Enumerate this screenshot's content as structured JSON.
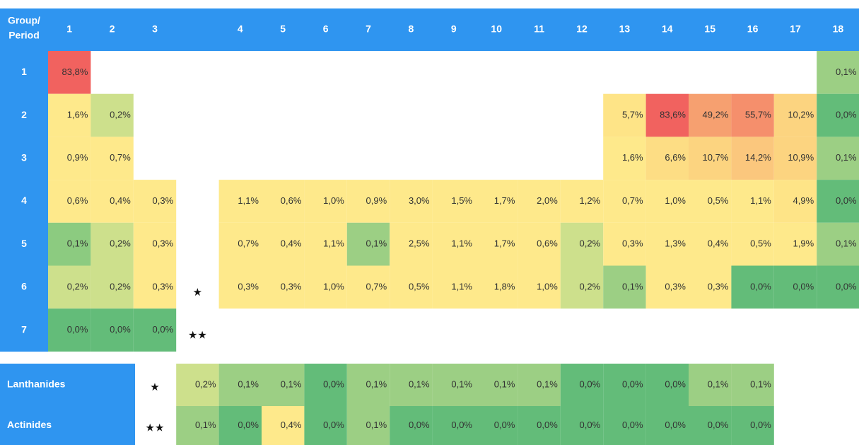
{
  "header": {
    "corner": [
      "Group/",
      "Period"
    ],
    "groups": [
      "1",
      "2",
      "3",
      "4",
      "5",
      "6",
      "7",
      "8",
      "9",
      "10",
      "11",
      "12",
      "13",
      "14",
      "15",
      "16",
      "17",
      "18"
    ]
  },
  "rows": [
    {
      "period": "1",
      "marker": null,
      "cells": [
        {
          "t": "83,8%",
          "c": "#f1625f"
        },
        null,
        null,
        null,
        null,
        null,
        null,
        null,
        null,
        null,
        null,
        null,
        null,
        null,
        null,
        null,
        null,
        {
          "t": "0,1%",
          "c": "#9ccf84"
        }
      ]
    },
    {
      "period": "2",
      "marker": null,
      "cells": [
        {
          "t": "1,6%",
          "c": "#fee98b"
        },
        {
          "t": "0,2%",
          "c": "#cde08c"
        },
        null,
        null,
        null,
        null,
        null,
        null,
        null,
        null,
        null,
        null,
        {
          "t": "5,7%",
          "c": "#fee487"
        },
        {
          "t": "83,6%",
          "c": "#f1625f"
        },
        {
          "t": "49,2%",
          "c": "#f6a070"
        },
        {
          "t": "55,7%",
          "c": "#f58f6c"
        },
        {
          "t": "10,2%",
          "c": "#fcd480"
        },
        {
          "t": "0,0%",
          "c": "#63bc79"
        }
      ]
    },
    {
      "period": "3",
      "marker": null,
      "cells": [
        {
          "t": "0,9%",
          "c": "#fee98b"
        },
        {
          "t": "0,7%",
          "c": "#fee98b"
        },
        null,
        null,
        null,
        null,
        null,
        null,
        null,
        null,
        null,
        null,
        {
          "t": "1,6%",
          "c": "#fee98b"
        },
        {
          "t": "6,6%",
          "c": "#fddd84"
        },
        {
          "t": "10,7%",
          "c": "#fcd480"
        },
        {
          "t": "14,2%",
          "c": "#fbc77d"
        },
        {
          "t": "10,9%",
          "c": "#fcd480"
        },
        {
          "t": "0,1%",
          "c": "#9ccf84"
        }
      ]
    },
    {
      "period": "4",
      "marker": null,
      "cells": [
        {
          "t": "0,6%",
          "c": "#fee98b"
        },
        {
          "t": "0,4%",
          "c": "#fee98b"
        },
        {
          "t": "0,3%",
          "c": "#fee98b"
        },
        {
          "t": "1,1%",
          "c": "#fee98b"
        },
        {
          "t": "0,6%",
          "c": "#fee98b"
        },
        {
          "t": "1,0%",
          "c": "#fee98b"
        },
        {
          "t": "0,9%",
          "c": "#fee98b"
        },
        {
          "t": "3,0%",
          "c": "#fee98b"
        },
        {
          "t": "1,5%",
          "c": "#fee98b"
        },
        {
          "t": "1,7%",
          "c": "#fee98b"
        },
        {
          "t": "2,0%",
          "c": "#fee98b"
        },
        {
          "t": "1,2%",
          "c": "#fee98b"
        },
        {
          "t": "0,7%",
          "c": "#fee98b"
        },
        {
          "t": "1,0%",
          "c": "#fee98b"
        },
        {
          "t": "0,5%",
          "c": "#fee98b"
        },
        {
          "t": "1,1%",
          "c": "#fee98b"
        },
        {
          "t": "4,9%",
          "c": "#fee487"
        },
        {
          "t": "0,0%",
          "c": "#63bc79"
        }
      ]
    },
    {
      "period": "5",
      "marker": null,
      "cells": [
        {
          "t": "0,1%",
          "c": "#8ccb80"
        },
        {
          "t": "0,2%",
          "c": "#cde08c"
        },
        {
          "t": "0,3%",
          "c": "#fee98b"
        },
        {
          "t": "0,7%",
          "c": "#fee98b"
        },
        {
          "t": "0,4%",
          "c": "#fee98b"
        },
        {
          "t": "1,1%",
          "c": "#fee98b"
        },
        {
          "t": "0,1%",
          "c": "#9ccf84"
        },
        {
          "t": "2,5%",
          "c": "#fee98b"
        },
        {
          "t": "1,1%",
          "c": "#fee98b"
        },
        {
          "t": "1,7%",
          "c": "#fee98b"
        },
        {
          "t": "0,6%",
          "c": "#fee98b"
        },
        {
          "t": "0,2%",
          "c": "#cde08c"
        },
        {
          "t": "0,3%",
          "c": "#fee98b"
        },
        {
          "t": "1,3%",
          "c": "#fee98b"
        },
        {
          "t": "0,4%",
          "c": "#fee98b"
        },
        {
          "t": "0,5%",
          "c": "#fee98b"
        },
        {
          "t": "1,9%",
          "c": "#fee98b"
        },
        {
          "t": "0,1%",
          "c": "#9ccf84"
        }
      ]
    },
    {
      "period": "6",
      "marker": "★",
      "cells": [
        {
          "t": "0,2%",
          "c": "#cde08c"
        },
        {
          "t": "0,2%",
          "c": "#cde08c"
        },
        {
          "t": "0,3%",
          "c": "#fee98b"
        },
        {
          "t": "0,3%",
          "c": "#fee98b"
        },
        {
          "t": "0,3%",
          "c": "#fee98b"
        },
        {
          "t": "1,0%",
          "c": "#fee98b"
        },
        {
          "t": "0,7%",
          "c": "#fee98b"
        },
        {
          "t": "0,5%",
          "c": "#fee98b"
        },
        {
          "t": "1,1%",
          "c": "#fee98b"
        },
        {
          "t": "1,8%",
          "c": "#fee98b"
        },
        {
          "t": "1,0%",
          "c": "#fee98b"
        },
        {
          "t": "0,2%",
          "c": "#cde08c"
        },
        {
          "t": "0,1%",
          "c": "#9ccf84"
        },
        {
          "t": "0,3%",
          "c": "#fee98b"
        },
        {
          "t": "0,3%",
          "c": "#fee98b"
        },
        {
          "t": "0,0%",
          "c": "#63bc79"
        },
        {
          "t": "0,0%",
          "c": "#63bc79"
        },
        {
          "t": "0,0%",
          "c": "#63bc79"
        }
      ]
    },
    {
      "period": "7",
      "marker": "★★",
      "cells": [
        {
          "t": "0,0%",
          "c": "#63bc79"
        },
        {
          "t": "0,0%",
          "c": "#63bc79"
        },
        {
          "t": "0,0%",
          "c": "#63bc79"
        },
        null,
        null,
        null,
        null,
        null,
        null,
        null,
        null,
        null,
        null,
        null,
        null,
        null,
        null,
        null
      ]
    }
  ],
  "series_rows": [
    {
      "label": "Lanthanides",
      "marker": "★",
      "cells": [
        {
          "t": "0,2%",
          "c": "#cde08c"
        },
        {
          "t": "0,1%",
          "c": "#9ccf84"
        },
        {
          "t": "0,1%",
          "c": "#9ccf84"
        },
        {
          "t": "0,0%",
          "c": "#63bc79"
        },
        {
          "t": "0,1%",
          "c": "#9ccf84"
        },
        {
          "t": "0,1%",
          "c": "#9ccf84"
        },
        {
          "t": "0,1%",
          "c": "#9ccf84"
        },
        {
          "t": "0,1%",
          "c": "#9ccf84"
        },
        {
          "t": "0,1%",
          "c": "#9ccf84"
        },
        {
          "t": "0,0%",
          "c": "#63bc79"
        },
        {
          "t": "0,0%",
          "c": "#63bc79"
        },
        {
          "t": "0,0%",
          "c": "#63bc79"
        },
        {
          "t": "0,1%",
          "c": "#9ccf84"
        },
        {
          "t": "0,1%",
          "c": "#9ccf84"
        }
      ]
    },
    {
      "label": "Actinides",
      "marker": "★★",
      "cells": [
        {
          "t": "0,1%",
          "c": "#9ccf84"
        },
        {
          "t": "0,0%",
          "c": "#63bc79"
        },
        {
          "t": "0,4%",
          "c": "#fee98b"
        },
        {
          "t": "0,0%",
          "c": "#63bc79"
        },
        {
          "t": "0,1%",
          "c": "#9ccf84"
        },
        {
          "t": "0,0%",
          "c": "#63bc79"
        },
        {
          "t": "0,0%",
          "c": "#63bc79"
        },
        {
          "t": "0,0%",
          "c": "#63bc79"
        },
        {
          "t": "0,0%",
          "c": "#63bc79"
        },
        {
          "t": "0,0%",
          "c": "#63bc79"
        },
        {
          "t": "0,0%",
          "c": "#63bc79"
        },
        {
          "t": "0,0%",
          "c": "#63bc79"
        },
        {
          "t": "0,0%",
          "c": "#63bc79"
        },
        {
          "t": "0,0%",
          "c": "#63bc79"
        }
      ]
    }
  ]
}
